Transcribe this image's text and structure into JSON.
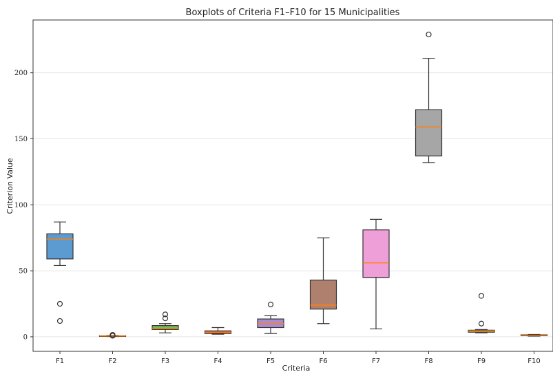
{
  "chart_data": {
    "type": "boxplot",
    "title": "Boxplots of Criteria F1–F10 for 15 Municipalities",
    "xlabel": "Criteria",
    "ylabel": "Criterion Value",
    "ylim": [
      -11,
      240
    ],
    "yticks": [
      0,
      50,
      100,
      150,
      200
    ],
    "grid": "horizontal",
    "median_color": "#ff7f0e",
    "categories": [
      "F1",
      "F2",
      "F3",
      "F4",
      "F5",
      "F6",
      "F7",
      "F8",
      "F9",
      "F10"
    ],
    "boxes": [
      {
        "name": "F1",
        "color": "#5b9bd1",
        "whislo": 54,
        "q1": 59,
        "med": 74,
        "q3": 78,
        "whishi": 87,
        "fliers": [
          25,
          12
        ]
      },
      {
        "name": "F2",
        "color": "#ff9f45",
        "whislo": 0.2,
        "q1": 0.4,
        "med": 0.6,
        "q3": 0.8,
        "whishi": 1.0,
        "fliers": [
          1.5,
          0.8
        ]
      },
      {
        "name": "F3",
        "color": "#6cbf5c",
        "whislo": 3,
        "q1": 5.5,
        "med": 6.5,
        "q3": 8.5,
        "whishi": 10,
        "fliers": [
          17,
          14
        ]
      },
      {
        "name": "F4",
        "color": "#d9534f",
        "whislo": 2,
        "q1": 2.5,
        "med": 3.5,
        "q3": 4.5,
        "whishi": 7,
        "fliers": []
      },
      {
        "name": "F5",
        "color": "#a98bd4",
        "whislo": 2.5,
        "q1": 7,
        "med": 10,
        "q3": 13.5,
        "whishi": 16,
        "fliers": [
          24.5
        ]
      },
      {
        "name": "F6",
        "color": "#b0806f",
        "whislo": 10,
        "q1": 21,
        "med": 24,
        "q3": 43,
        "whishi": 75,
        "fliers": []
      },
      {
        "name": "F7",
        "color": "#ef9fd8",
        "whislo": 6,
        "q1": 45,
        "med": 56,
        "q3": 81,
        "whishi": 89,
        "fliers": []
      },
      {
        "name": "F8",
        "color": "#a6a6a6",
        "whislo": 132,
        "q1": 137,
        "med": 159,
        "q3": 172,
        "whishi": 211,
        "fliers": [
          229
        ]
      },
      {
        "name": "F9",
        "color": "#d8c34a",
        "whislo": 3,
        "q1": 3.5,
        "med": 4.5,
        "q3": 5,
        "whishi": 5.5,
        "fliers": [
          31,
          10
        ]
      },
      {
        "name": "F10",
        "color": "#5fc6cf",
        "whislo": 0.5,
        "q1": 0.8,
        "med": 1.2,
        "q3": 1.5,
        "whishi": 1.8,
        "fliers": []
      }
    ]
  }
}
